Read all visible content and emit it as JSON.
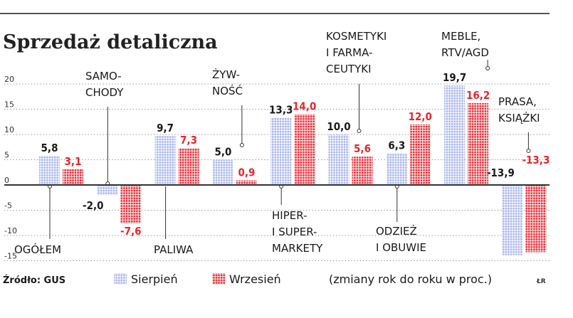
{
  "chart_data": {
    "type": "bar",
    "title": "Sprzedaż detaliczna",
    "ylim": [
      -15,
      20
    ],
    "yticks": [
      20,
      15,
      10,
      5,
      0,
      -5,
      -10,
      -15
    ],
    "tick_labels": [
      "20",
      "15",
      "10",
      "5",
      "0",
      "-5",
      "-10",
      "-15"
    ],
    "grid": true,
    "legend_position": "bottom",
    "categories": [
      {
        "lines": [
          "OGÓŁEM"
        ]
      },
      {
        "lines": [
          "SAMO-",
          "CHODY"
        ]
      },
      {
        "lines": [
          "PALIWA"
        ]
      },
      {
        "lines": [
          "ŻYWNOŚĆ"
        ]
      },
      {
        "lines": [
          "HIPER-",
          "I SUPER-",
          "MARKETY"
        ]
      },
      {
        "lines": [
          "KOSMETYKI",
          "I FARMA-",
          "CEUTYKI"
        ]
      },
      {
        "lines": [
          "ODZIEŻ",
          "I OBUWIE"
        ]
      },
      {
        "lines": [
          "MEBLE,",
          "RTV/AGD"
        ]
      },
      {
        "lines": [
          "PRASA,",
          "KSIĄŻKI"
        ]
      }
    ],
    "category_display_lines": [
      [
        "OGÓŁEM"
      ],
      [
        "SAMO-",
        "CHODY"
      ],
      [
        "PALIWA"
      ],
      [
        "ŻYW-",
        "NOŚĆ"
      ],
      [
        "HIPER-",
        "I SUPER-",
        "MARKETY"
      ],
      [
        "KOSMETYKI",
        "I FARMA-",
        "CEUTYKI"
      ],
      [
        "ODZIEŻ",
        "I OBUWIE"
      ],
      [
        "MEBLE,",
        "RTV/AGD"
      ],
      [
        "PRASA,",
        "KSIĄŻKI"
      ]
    ],
    "series": [
      {
        "name": "Sierpień",
        "color": "#a6b4ec",
        "values": [
          5.8,
          -2.0,
          9.7,
          5.0,
          13.3,
          10.0,
          6.3,
          19.7,
          -13.9
        ],
        "labels": [
          "5,8",
          "-2,0",
          "9,7",
          "5,0",
          "13,3",
          "10,0",
          "6,3",
          "19,7",
          "-13,9"
        ],
        "label_color": "#1a1a1a"
      },
      {
        "name": "Wrzesień",
        "color": "#e8262b",
        "values": [
          3.1,
          -7.6,
          7.3,
          0.9,
          14.0,
          5.6,
          12.0,
          16.2,
          -13.3
        ],
        "labels": [
          "3,1",
          "-7,6",
          "7,3",
          "0,9",
          "14,0",
          "5,6",
          "12,0",
          "16,2",
          "-13,3"
        ],
        "label_color": "#e8262b"
      }
    ],
    "source": "Źródło: GUS",
    "note": "(zmiany rok do roku w proc.)",
    "credit": "ŁR"
  }
}
